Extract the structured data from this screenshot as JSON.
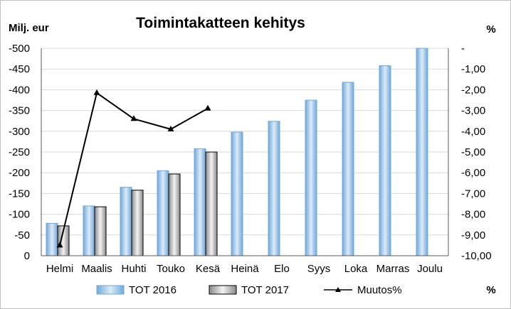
{
  "chart_data": {
    "type": "bar",
    "title": "Toimintakatteen kehitys",
    "y_left_unit": "Milj. eur",
    "y_right_unit_top": "%",
    "y_right_unit_bottom": "%",
    "categories": [
      "Helmi",
      "Maalis",
      "Huhti",
      "Touko",
      "Kesä",
      "Heinä",
      "Elo",
      "Syys",
      "Loka",
      "Marras",
      "Joulu"
    ],
    "y_left_ticks": [
      "-500",
      "-450",
      "-400",
      "-350",
      "-300",
      "-250",
      "-200",
      "-150",
      "-100",
      "-50",
      "0"
    ],
    "y_left_range": [
      0,
      -500
    ],
    "y_right_ticks": [
      "-",
      "-1,00",
      "-2,00",
      "-3,00",
      "-4,00",
      "-5,00",
      "-6,00",
      "-7,00",
      "-8,00",
      "-9,00",
      "-10,00"
    ],
    "y_right_range": [
      0,
      -10
    ],
    "series": [
      {
        "name": "TOT 2016",
        "kind": "bar",
        "color": "#bdd7ee",
        "values": [
          -78,
          -120,
          -165,
          -205,
          -258,
          -298,
          -324,
          -375,
          -418,
          -458,
          -500
        ]
      },
      {
        "name": "TOT 2017",
        "kind": "bar",
        "color": "#d0d0d0",
        "values": [
          -72,
          -118,
          -158,
          -197,
          -250,
          null,
          null,
          null,
          null,
          null,
          null
        ]
      },
      {
        "name": "Muutos%",
        "kind": "line",
        "axis": "right",
        "color": "#000000",
        "values": [
          -9.5,
          -2.15,
          -3.4,
          -3.9,
          -2.9,
          null,
          null,
          null,
          null,
          null,
          null
        ]
      }
    ],
    "grid": true,
    "legend_position": "bottom"
  }
}
